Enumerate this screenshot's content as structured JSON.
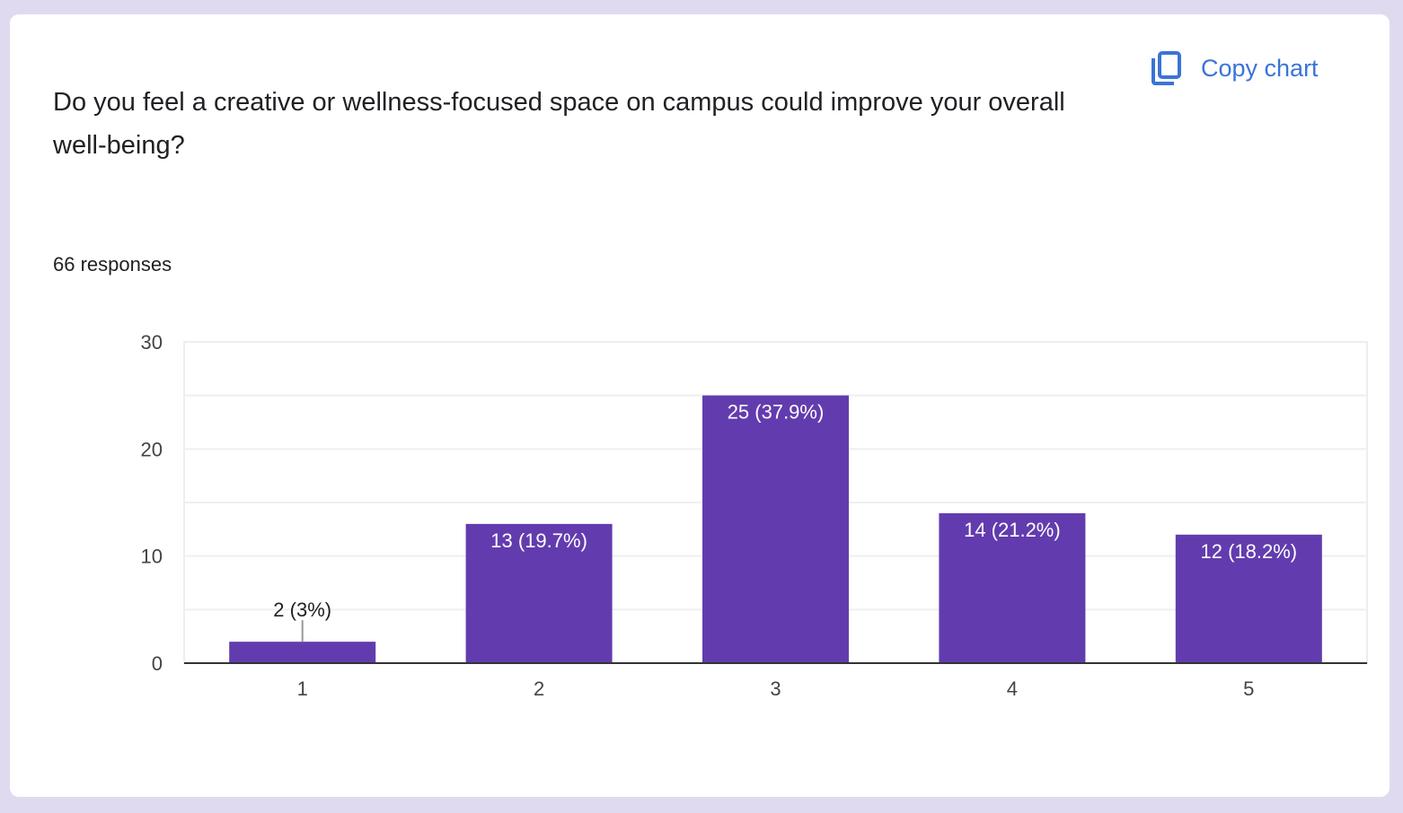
{
  "card": {
    "question": "Do you feel a creative or wellness-focused space on campus could improve your overall well-being?",
    "responses": "66 responses",
    "copy_label": "Copy chart",
    "copy_icon": "copy-icon",
    "accent": "#3b73d9"
  },
  "chart_data": {
    "type": "bar",
    "title": "Do you feel a creative or wellness-focused space on campus could improve your overall well-being?",
    "xlabel": "",
    "ylabel": "",
    "categories": [
      "1",
      "2",
      "3",
      "4",
      "5"
    ],
    "values": [
      2,
      13,
      25,
      14,
      12
    ],
    "labels": [
      "2 (3%)",
      "13 (19.7%)",
      "25 (37.9%)",
      "14 (21.2%)",
      "12 (18.2%)"
    ],
    "ylim": [
      0,
      30
    ],
    "yticks": [
      "0",
      "10",
      "20",
      "30"
    ],
    "grid": true,
    "bar_color": "#623cae"
  }
}
